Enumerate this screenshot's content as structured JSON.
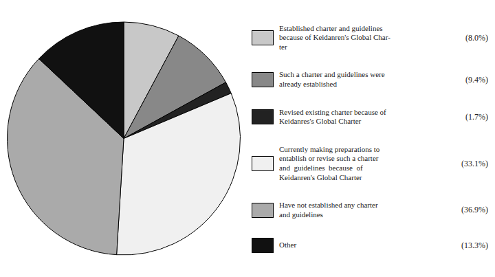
{
  "chart_data": {
    "type": "pie",
    "categories": [
      "Established charter and guidelines\nbecause of Keidanren's Global Char-\nter",
      "Such a charter and guidelines were\nalready established",
      "Revised existing charter because of\nKeidanres's Global Charter",
      "Currently making preparations to\nentablish or revise such a charter\nand  guidelines  because  of\nKeidanren's Global Charter",
      "Have not established any charter\nand guidelines",
      "Other"
    ],
    "values": [
      8.0,
      9.4,
      1.7,
      33.1,
      36.9,
      13.3
    ],
    "value_labels": [
      "(8.0%)",
      "(9.4%)",
      "(1.7%)",
      "(33.1%)",
      "(36.9%)",
      "(13.3%)"
    ],
    "colors": [
      "#c8c8c8",
      "#888888",
      "#222222",
      "#f0f0f0",
      "#aaaaaa",
      "#111111"
    ],
    "legend": "right"
  }
}
